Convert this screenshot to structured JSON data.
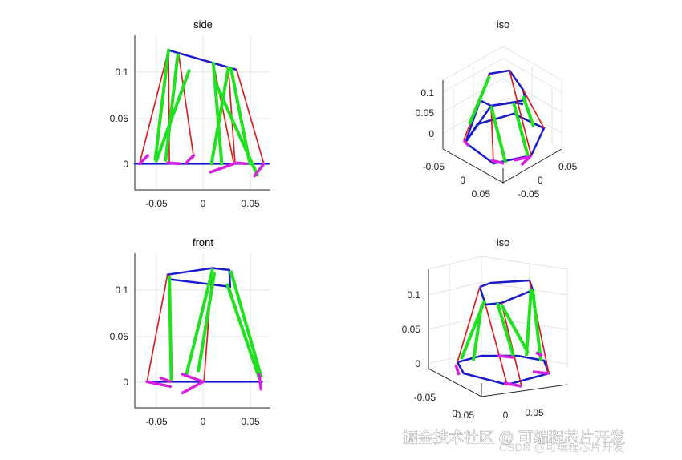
{
  "chart_data": [
    {
      "type": "line",
      "title": "side",
      "x_ticks": [
        "-0.05",
        "0",
        "0.05"
      ],
      "y_ticks": [
        "0",
        "0.05",
        "0.1"
      ],
      "xlim": [
        -0.073,
        0.072
      ],
      "ylim": [
        -0.028,
        0.138
      ],
      "grid": true,
      "series": [
        {
          "color": "#1a1acc",
          "segments": [
            [
              [
                -0.073,
                0
              ],
              [
                0.07,
                0
              ]
            ],
            [
              [
                -0.037,
                0.122
              ],
              [
                0.036,
                0.101
              ]
            ]
          ]
        },
        {
          "color": "#d42020",
          "segments": [
            [
              [
                -0.068,
                0
              ],
              [
                -0.037,
                0.122
              ]
            ],
            [
              [
                -0.037,
                0.122
              ],
              [
                -0.036,
                0
              ]
            ],
            [
              [
                -0.026,
                0.117
              ],
              [
                -0.01,
                0.007
              ]
            ],
            [
              [
                0.011,
                0.108
              ],
              [
                0.033,
                0
              ]
            ],
            [
              [
                0.027,
                0.103
              ],
              [
                0.034,
                0.003
              ]
            ],
            [
              [
                0.036,
                0.101
              ],
              [
                0.065,
                0
              ]
            ]
          ]
        },
        {
          "color": "#20e020",
          "segments": [
            [
              [
                -0.037,
                0.122
              ],
              [
                -0.051,
                0.005
              ]
            ],
            [
              [
                -0.027,
                0.117
              ],
              [
                -0.04,
                0.004
              ]
            ],
            [
              [
                -0.015,
                0.1
              ],
              [
                -0.05,
                0.003
              ]
            ],
            [
              [
                0.011,
                0.108
              ],
              [
                0.02,
                0
              ]
            ],
            [
              [
                0.027,
                0.103
              ],
              [
                0.009,
                0
              ]
            ],
            [
              [
                0.03,
                0.102
              ],
              [
                0.05,
                0
              ]
            ],
            [
              [
                0.012,
                0.09
              ],
              [
                0.058,
                -0.012
              ]
            ]
          ]
        },
        {
          "color": "#d81ee0",
          "segments": [
            [
              [
                -0.068,
                0
              ],
              [
                -0.059,
                0.009
              ]
            ],
            [
              [
                -0.038,
                0.001
              ],
              [
                -0.025,
                0
              ]
            ],
            [
              [
                -0.018,
                0.001
              ],
              [
                -0.01,
                0.009
              ]
            ],
            [
              [
                0.008,
                -0.009
              ],
              [
                0.033,
                0
              ]
            ],
            [
              [
                0.035,
                0.001
              ],
              [
                0.046,
                0
              ]
            ],
            [
              [
                0.055,
                -0.013
              ],
              [
                0.065,
                0
              ]
            ]
          ]
        }
      ]
    },
    {
      "type": "line",
      "title": "iso",
      "z_ticks": [
        "0",
        "0.05",
        "0.1"
      ],
      "x_ticks": [
        "-0.05",
        "0",
        "0.05"
      ],
      "y_ticks": [
        "0.05",
        "0",
        "-0.05"
      ],
      "grid": true
    },
    {
      "type": "line",
      "title": "front",
      "x_ticks": [
        "-0.05",
        "0",
        "0.05"
      ],
      "y_ticks": [
        "0",
        "0.05",
        "0.1"
      ],
      "xlim": [
        -0.073,
        0.072
      ],
      "ylim": [
        -0.028,
        0.138
      ],
      "grid": true,
      "series": [
        {
          "color": "#1a1acc",
          "segments": [
            [
              [
                -0.06,
                0
              ],
              [
                0.063,
                0
              ]
            ],
            [
              [
                -0.038,
                0.115
              ],
              [
                0.01,
                0.122
              ]
            ],
            [
              [
                0.01,
                0.122
              ],
              [
                0.028,
                0.12
              ]
            ],
            [
              [
                0.028,
                0.12
              ],
              [
                0.029,
                0.102
              ]
            ],
            [
              [
                0.029,
                0.102
              ],
              [
                -0.035,
                0.11
              ]
            ],
            [
              [
                -0.035,
                0.11
              ],
              [
                -0.038,
                0.115
              ]
            ]
          ]
        },
        {
          "color": "#d42020",
          "segments": [
            [
              [
                -0.06,
                0
              ],
              [
                -0.038,
                0.115
              ]
            ],
            [
              [
                0.01,
                0.122
              ],
              [
                0.001,
                0
              ]
            ],
            [
              [
                0.028,
                0.102
              ],
              [
                0.061,
                0
              ]
            ]
          ]
        },
        {
          "color": "#20e020",
          "segments": [
            [
              [
                -0.036,
                0.112
              ],
              [
                -0.034,
                0.002
              ]
            ],
            [
              [
                0.01,
                0.12
              ],
              [
                -0.018,
                0.007
              ]
            ],
            [
              [
                0.012,
                0.116
              ],
              [
                -0.005,
                0.012
              ]
            ],
            [
              [
                0.03,
                0.118
              ],
              [
                0.062,
                0.006
              ]
            ],
            [
              [
                0.026,
                0.104
              ],
              [
                0.06,
                0.004
              ]
            ]
          ]
        },
        {
          "color": "#d81ee0",
          "segments": [
            [
              [
                -0.06,
                0
              ],
              [
                -0.035,
                -0.005
              ]
            ],
            [
              [
                -0.035,
                0
              ],
              [
                -0.045,
                0.004
              ]
            ],
            [
              [
                -0.022,
                0.008
              ],
              [
                0,
                0
              ]
            ],
            [
              [
                0,
                0
              ],
              [
                -0.022,
                -0.012
              ]
            ],
            [
              [
                0.06,
                0.008
              ],
              [
                0.062,
                -0.008
              ]
            ]
          ]
        }
      ]
    },
    {
      "type": "line",
      "title": "iso",
      "z_ticks": [
        "0",
        "0.05",
        "0.1"
      ],
      "x_ticks": [
        "-0.05",
        "0",
        "0.05"
      ],
      "y_ticks": [
        "0.05",
        "0"
      ],
      "grid": true
    }
  ],
  "colors": {
    "base": "#1a1acc",
    "link_red": "#d42020",
    "link_green": "#20e020",
    "foot": "#d81ee0"
  },
  "watermark": {
    "line1": "掘金技术社区 @ 可编程芯片开发",
    "line2": "CSDN @可编程芯片开发"
  }
}
